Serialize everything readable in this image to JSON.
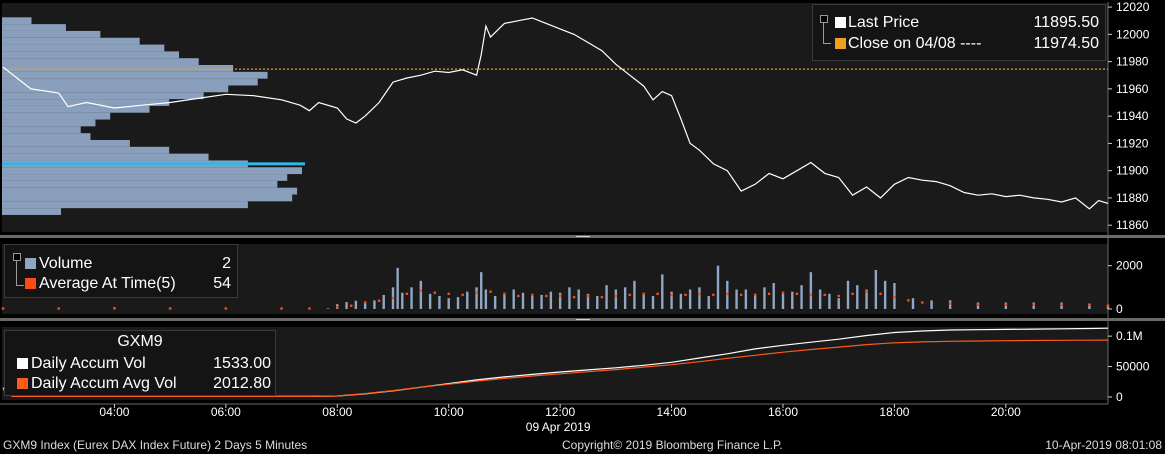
{
  "colors": {
    "background": "#000000",
    "panel": "#1a1a1a",
    "price_line": "#ffffff",
    "close_line": "#f0a020",
    "volume_bar": "#8fa6c4",
    "avg_dot": "#ff4a12",
    "accum_avg_line": "#ff5a1a",
    "profile": "#8fa6c4",
    "profile_highlight": "#2fb7e8",
    "grid": "#3a3a3a",
    "separator": "#6a6a6a"
  },
  "legend_price": {
    "items": [
      {
        "label": "Last Price",
        "value": "11895.50",
        "color": "#ffffff"
      },
      {
        "label": "Close on 04/08 ---- ",
        "value": "11974.50",
        "color": "#f0a020"
      }
    ]
  },
  "legend_volume": {
    "items": [
      {
        "label": "Volume",
        "value": "2",
        "color": "#8fa6c4"
      },
      {
        "label": "Average At Time(5)",
        "value": "54",
        "color": "#ff4a12"
      }
    ]
  },
  "legend_accum": {
    "title": "GXM9",
    "items": [
      {
        "label": "Daily Accum Vol",
        "value": "1533.00",
        "color": "#ffffff"
      },
      {
        "label": "Daily Accum Avg Vol",
        "value": "2012.80",
        "color": "#ff5a1a"
      }
    ]
  },
  "footer": {
    "left": "GXM9 Index (Eurex DAX Index Future) 2 Days 5 Minutes",
    "center": "Copyright© 2019 Bloomberg Finance L.P.",
    "right": "10-Apr-2019 08:01:08"
  },
  "chart_data": {
    "type": "line",
    "date_label": "09 Apr 2019",
    "x_ticks": [
      "04:00",
      "06:00",
      "08:00",
      "10:00",
      "12:00",
      "14:00",
      "16:00",
      "18:00",
      "20:00"
    ],
    "x_range": [
      "02:00",
      "21:50"
    ],
    "price_panel": {
      "y_ticks": [
        11860,
        11880,
        11900,
        11920,
        11940,
        11960,
        11980,
        12000,
        12020
      ],
      "ylim": [
        11855,
        12023
      ],
      "close_reference": 11974.5,
      "series": [
        {
          "name": "Last Price",
          "time": [
            "02:00",
            "02:30",
            "03:00",
            "03:10",
            "03:30",
            "04:00",
            "04:30",
            "05:00",
            "05:30",
            "06:00",
            "06:30",
            "07:00",
            "07:20",
            "07:30",
            "07:40",
            "08:00",
            "08:10",
            "08:20",
            "08:30",
            "08:45",
            "09:00",
            "09:15",
            "09:30",
            "09:45",
            "10:00",
            "10:15",
            "10:30",
            "10:35",
            "10:40",
            "10:45",
            "11:00",
            "11:15",
            "11:30",
            "11:45",
            "12:00",
            "12:15",
            "12:30",
            "12:45",
            "13:00",
            "13:15",
            "13:30",
            "13:40",
            "13:50",
            "14:00",
            "14:10",
            "14:20",
            "14:30",
            "14:45",
            "15:00",
            "15:15",
            "15:30",
            "15:45",
            "16:00",
            "16:15",
            "16:30",
            "16:45",
            "17:00",
            "17:15",
            "17:30",
            "17:45",
            "18:00",
            "18:15",
            "18:30",
            "18:45",
            "19:00",
            "19:15",
            "19:30",
            "19:45",
            "20:00",
            "20:15",
            "20:30",
            "20:45",
            "21:00",
            "21:15",
            "21:30",
            "21:40",
            "21:50"
          ],
          "values": [
            11976,
            11960,
            11957,
            11947,
            11950,
            11946,
            11948,
            11950,
            11953,
            11956,
            11955,
            11952,
            11948,
            11944,
            11950,
            11946,
            11938,
            11935,
            11940,
            11950,
            11965,
            11968,
            11970,
            11973,
            11972,
            11974,
            11970,
            11985,
            12006,
            11998,
            12008,
            12010,
            12012,
            12008,
            12004,
            12000,
            11994,
            11988,
            11978,
            11970,
            11962,
            11952,
            11958,
            11955,
            11938,
            11920,
            11915,
            11905,
            11900,
            11885,
            11890,
            11898,
            11894,
            11900,
            11906,
            11898,
            11895,
            11882,
            11888,
            11880,
            11890,
            11895,
            11893,
            11892,
            11889,
            11884,
            11882,
            11883,
            11881,
            11882,
            11880,
            11879,
            11877,
            11880,
            11872,
            11878,
            11876
          ]
        }
      ],
      "volume_profile": {
        "price": [
          12010,
          12005,
          12000,
          11995,
          11990,
          11985,
          11980,
          11975,
          11970,
          11965,
          11960,
          11955,
          11950,
          11945,
          11940,
          11935,
          11930,
          11925,
          11920,
          11915,
          11910,
          11905,
          11900,
          11895,
          11890,
          11885,
          11880,
          11875,
          11870
        ],
        "volume": [
          30,
          65,
          100,
          140,
          165,
          180,
          200,
          235,
          270,
          260,
          230,
          205,
          170,
          150,
          110,
          95,
          80,
          90,
          130,
          170,
          210,
          250,
          305,
          290,
          280,
          300,
          295,
          250,
          60
        ],
        "highlight_price": 11905
      }
    },
    "volume_panel": {
      "y_ticks": [
        0,
        2000
      ],
      "ylim": [
        0,
        3000
      ],
      "series": [
        {
          "name": "Volume",
          "type": "bar",
          "time": [
            "02:00",
            "03:00",
            "04:00",
            "05:00",
            "06:00",
            "07:00",
            "07:50",
            "08:00",
            "08:10",
            "08:20",
            "08:30",
            "08:40",
            "08:50",
            "09:00",
            "09:05",
            "09:10",
            "09:20",
            "09:30",
            "09:40",
            "09:50",
            "10:00",
            "10:10",
            "10:20",
            "10:30",
            "10:35",
            "10:40",
            "10:50",
            "11:00",
            "11:10",
            "11:20",
            "11:30",
            "11:40",
            "11:50",
            "12:00",
            "12:10",
            "12:20",
            "12:30",
            "12:40",
            "12:50",
            "13:00",
            "13:10",
            "13:20",
            "13:30",
            "13:40",
            "13:50",
            "14:00",
            "14:10",
            "14:20",
            "14:30",
            "14:40",
            "14:50",
            "15:00",
            "15:10",
            "15:20",
            "15:30",
            "15:40",
            "15:50",
            "16:00",
            "16:10",
            "16:20",
            "16:30",
            "16:40",
            "16:50",
            "17:00",
            "17:10",
            "17:20",
            "17:30",
            "17:40",
            "17:50",
            "18:00",
            "18:20",
            "18:40",
            "19:00",
            "19:30",
            "20:00",
            "20:30",
            "21:00",
            "21:30",
            "21:50"
          ],
          "values": [
            60,
            50,
            80,
            40,
            50,
            45,
            30,
            220,
            320,
            380,
            300,
            400,
            650,
            1000,
            1900,
            750,
            1000,
            1300,
            700,
            600,
            500,
            550,
            800,
            1000,
            1700,
            900,
            600,
            700,
            900,
            750,
            600,
            650,
            800,
            750,
            1000,
            900,
            700,
            600,
            1100,
            900,
            1000,
            1300,
            700,
            600,
            1600,
            800,
            700,
            900,
            1000,
            600,
            2000,
            1300,
            900,
            900,
            700,
            1000,
            1200,
            700,
            800,
            1100,
            1700,
            900,
            700,
            500,
            1300,
            1100,
            900,
            1800,
            1300,
            1200,
            500,
            400,
            400,
            300,
            300,
            300,
            300,
            250,
            200
          ]
        },
        {
          "name": "Average At Time(5)",
          "type": "scatter",
          "time": [
            "02:00",
            "03:00",
            "04:00",
            "05:00",
            "06:00",
            "07:00",
            "07:30",
            "08:00",
            "08:15",
            "08:30",
            "08:45",
            "09:00",
            "09:15",
            "09:30",
            "09:45",
            "10:00",
            "10:15",
            "10:30",
            "10:45",
            "11:00",
            "11:15",
            "11:30",
            "11:45",
            "12:00",
            "12:15",
            "12:30",
            "12:45",
            "13:00",
            "13:15",
            "13:30",
            "13:45",
            "14:00",
            "14:15",
            "14:30",
            "14:45",
            "15:00",
            "15:15",
            "15:30",
            "15:45",
            "16:00",
            "16:15",
            "16:30",
            "16:45",
            "17:00",
            "17:15",
            "17:30",
            "17:45",
            "18:00",
            "18:15",
            "18:30",
            "19:00",
            "19:30",
            "20:00",
            "20:30",
            "21:00",
            "21:30",
            "21:50"
          ],
          "values": [
            20,
            20,
            30,
            25,
            25,
            20,
            25,
            80,
            150,
            300,
            380,
            500,
            700,
            850,
            750,
            700,
            650,
            750,
            800,
            700,
            600,
            650,
            600,
            600,
            550,
            600,
            550,
            600,
            650,
            700,
            700,
            650,
            650,
            700,
            650,
            700,
            650,
            650,
            700,
            750,
            700,
            650,
            650,
            600,
            700,
            800,
            700,
            550,
            400,
            300,
            250,
            200,
            200,
            200,
            200,
            200,
            150
          ]
        }
      ]
    },
    "accum_panel": {
      "y_ticks": [
        0,
        50000,
        "0.1M"
      ],
      "ylim": [
        -5000,
        115000
      ],
      "series": [
        {
          "name": "Daily Accum Vol",
          "time": [
            "02:00",
            "02:10",
            "07:30",
            "08:00",
            "08:30",
            "09:00",
            "09:30",
            "10:00",
            "10:30",
            "11:00",
            "11:30",
            "12:00",
            "12:30",
            "13:00",
            "13:30",
            "14:00",
            "14:30",
            "15:00",
            "15:30",
            "16:00",
            "16:30",
            "17:00",
            "17:30",
            "18:00",
            "18:30",
            "19:00",
            "19:30",
            "20:00",
            "20:30",
            "21:00",
            "21:30",
            "21:50"
          ],
          "values": [
            15000,
            1000,
            1000,
            1500,
            5000,
            10000,
            16000,
            22000,
            28000,
            33000,
            37000,
            41000,
            44500,
            48000,
            52000,
            57000,
            64000,
            71000,
            79000,
            85000,
            90000,
            95000,
            101000,
            106000,
            108500,
            110000,
            110500,
            111000,
            111500,
            112000,
            112500,
            113000
          ]
        },
        {
          "name": "Daily Accum Avg Vol",
          "time": [
            "02:00",
            "02:10",
            "07:30",
            "08:00",
            "08:30",
            "09:00",
            "09:30",
            "10:00",
            "10:30",
            "11:00",
            "11:30",
            "12:00",
            "12:30",
            "13:00",
            "13:30",
            "14:00",
            "14:30",
            "15:00",
            "15:30",
            "16:00",
            "16:30",
            "17:00",
            "17:30",
            "18:00",
            "18:30",
            "19:00",
            "19:30",
            "20:00",
            "20:30",
            "21:00",
            "21:30",
            "21:50"
          ],
          "values": [
            12000,
            1000,
            1000,
            1500,
            5500,
            10500,
            16000,
            21000,
            26000,
            30500,
            34500,
            38000,
            41500,
            45000,
            49000,
            53000,
            58000,
            63500,
            68500,
            73500,
            78000,
            82000,
            86000,
            89000,
            90500,
            91500,
            92000,
            92500,
            92800,
            93100,
            93300,
            93500
          ]
        }
      ]
    }
  }
}
